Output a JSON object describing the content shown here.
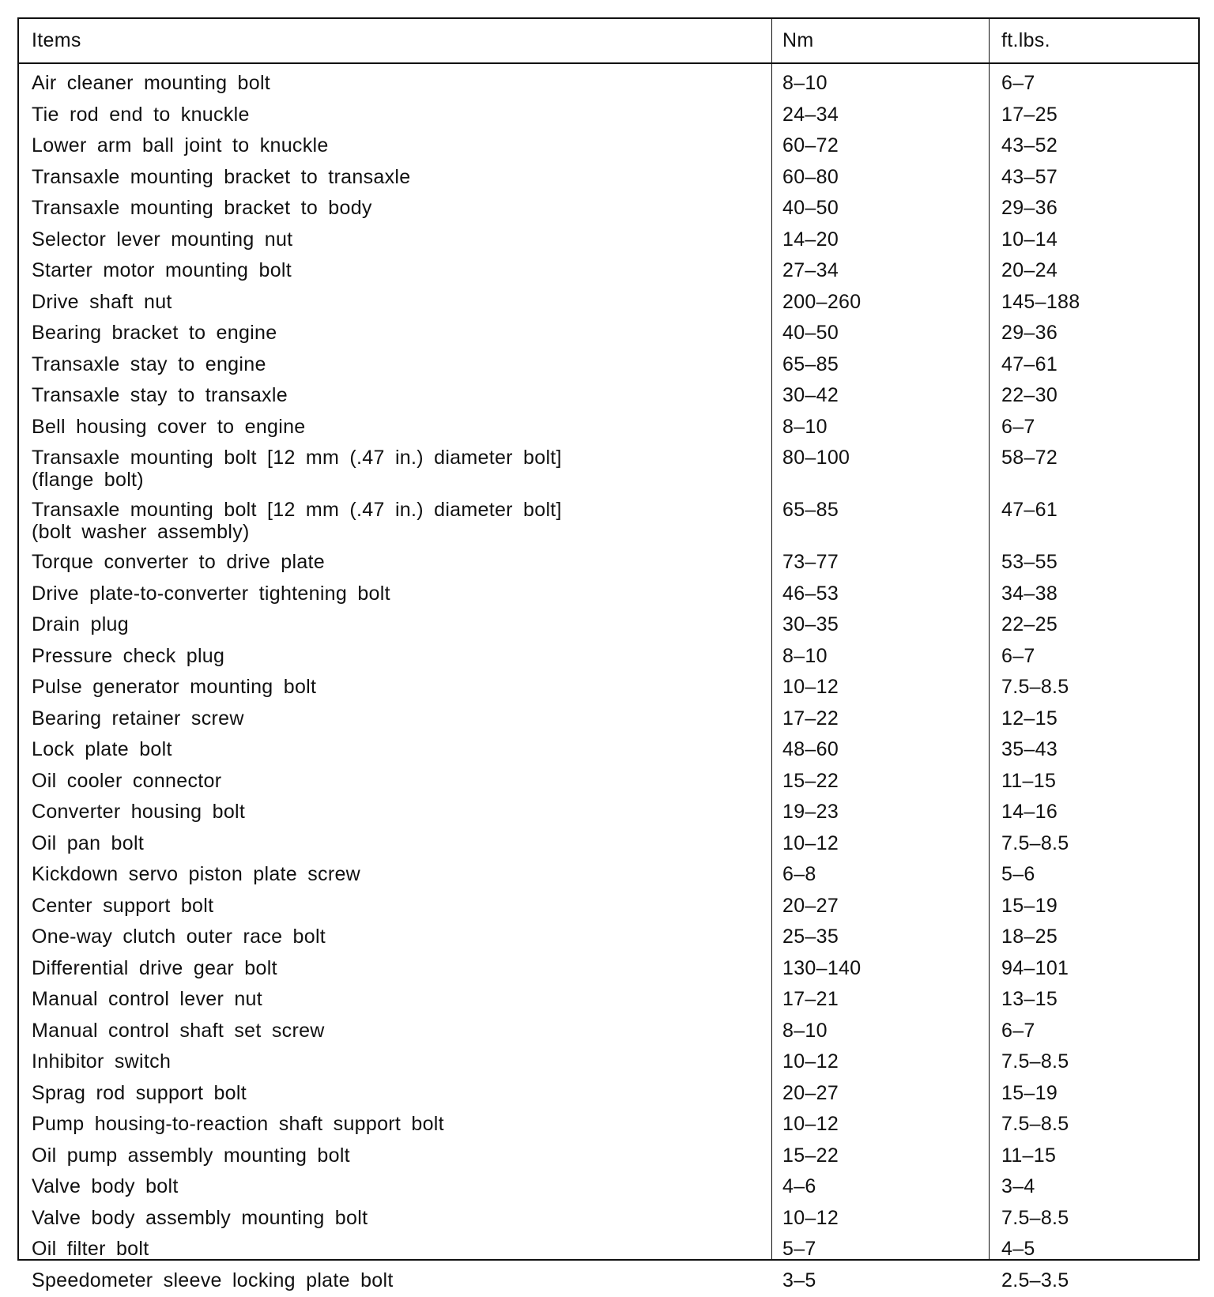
{
  "table": {
    "headers": [
      "Items",
      "Nm",
      "ft.lbs."
    ],
    "rows": [
      {
        "item": "Air cleaner mounting bolt",
        "nm": "8–10",
        "ftlbs": "6–7"
      },
      {
        "item": "Tie rod end to knuckle",
        "nm": "24–34",
        "ftlbs": "17–25"
      },
      {
        "item": "Lower arm ball joint to knuckle",
        "nm": "60–72",
        "ftlbs": "43–52"
      },
      {
        "item": "Transaxle mounting bracket to transaxle",
        "nm": "60–80",
        "ftlbs": "43–57"
      },
      {
        "item": "Transaxle mounting bracket to body",
        "nm": "40–50",
        "ftlbs": "29–36"
      },
      {
        "item": "Selector lever mounting nut",
        "nm": "14–20",
        "ftlbs": "10–14"
      },
      {
        "item": "Starter motor mounting bolt",
        "nm": "27–34",
        "ftlbs": "20–24"
      },
      {
        "item": "Drive shaft nut",
        "nm": "200–260",
        "ftlbs": "145–188"
      },
      {
        "item": "Bearing bracket to engine",
        "nm": "40–50",
        "ftlbs": "29–36"
      },
      {
        "item": "Transaxle stay to engine",
        "nm": "65–85",
        "ftlbs": "47–61"
      },
      {
        "item": "Transaxle stay to transaxle",
        "nm": "30–42",
        "ftlbs": "22–30"
      },
      {
        "item": "Bell housing cover to engine",
        "nm": "8–10",
        "ftlbs": "6–7"
      },
      {
        "item": "Transaxle mounting bolt [12 mm (.47 in.) diameter bolt]\n(flange bolt)",
        "nm": "80–100",
        "ftlbs": "58–72"
      },
      {
        "item": "Transaxle mounting bolt [12 mm (.47 in.) diameter bolt]\n(bolt washer assembly)",
        "nm": "65–85",
        "ftlbs": "47–61"
      },
      {
        "item": "Torque converter to drive plate",
        "nm": "73–77",
        "ftlbs": "53–55"
      },
      {
        "item": "Drive plate-to-converter tightening bolt",
        "nm": "46–53",
        "ftlbs": "34–38"
      },
      {
        "item": "Drain plug",
        "nm": "30–35",
        "ftlbs": "22–25"
      },
      {
        "item": "Pressure check plug",
        "nm": "8–10",
        "ftlbs": "6–7"
      },
      {
        "item": "Pulse generator mounting bolt",
        "nm": "10–12",
        "ftlbs": "7.5–8.5"
      },
      {
        "item": "Bearing retainer screw",
        "nm": "17–22",
        "ftlbs": "12–15"
      },
      {
        "item": "Lock plate bolt",
        "nm": "48–60",
        "ftlbs": "35–43"
      },
      {
        "item": "Oil cooler connector",
        "nm": "15–22",
        "ftlbs": "11–15"
      },
      {
        "item": "Converter housing bolt",
        "nm": "19–23",
        "ftlbs": "14–16"
      },
      {
        "item": "Oil pan bolt",
        "nm": "10–12",
        "ftlbs": "7.5–8.5"
      },
      {
        "item": "Kickdown servo piston plate screw",
        "nm": "6–8",
        "ftlbs": "5–6"
      },
      {
        "item": "Center support bolt",
        "nm": "20–27",
        "ftlbs": "15–19"
      },
      {
        "item": "One-way clutch outer race bolt",
        "nm": "25–35",
        "ftlbs": "18–25"
      },
      {
        "item": "Differential drive gear bolt",
        "nm": "130–140",
        "ftlbs": "94–101"
      },
      {
        "item": "Manual control lever nut",
        "nm": "17–21",
        "ftlbs": "13–15"
      },
      {
        "item": "Manual control shaft set screw",
        "nm": "8–10",
        "ftlbs": "6–7"
      },
      {
        "item": "Inhibitor switch",
        "nm": "10–12",
        "ftlbs": "7.5–8.5"
      },
      {
        "item": "Sprag rod support bolt",
        "nm": "20–27",
        "ftlbs": "15–19"
      },
      {
        "item": "Pump housing-to-reaction shaft support bolt",
        "nm": "10–12",
        "ftlbs": "7.5–8.5"
      },
      {
        "item": "Oil pump assembly mounting bolt",
        "nm": "15–22",
        "ftlbs": "11–15"
      },
      {
        "item": "Valve body bolt",
        "nm": "4–6",
        "ftlbs": "3–4"
      },
      {
        "item": "Valve body assembly mounting bolt",
        "nm": "10–12",
        "ftlbs": "7.5–8.5"
      },
      {
        "item": "Oil filter bolt",
        "nm": "5–7",
        "ftlbs": "4–5"
      },
      {
        "item": "Speedometer sleeve locking plate bolt",
        "nm": "3–5",
        "ftlbs": "2.5–3.5"
      }
    ]
  }
}
